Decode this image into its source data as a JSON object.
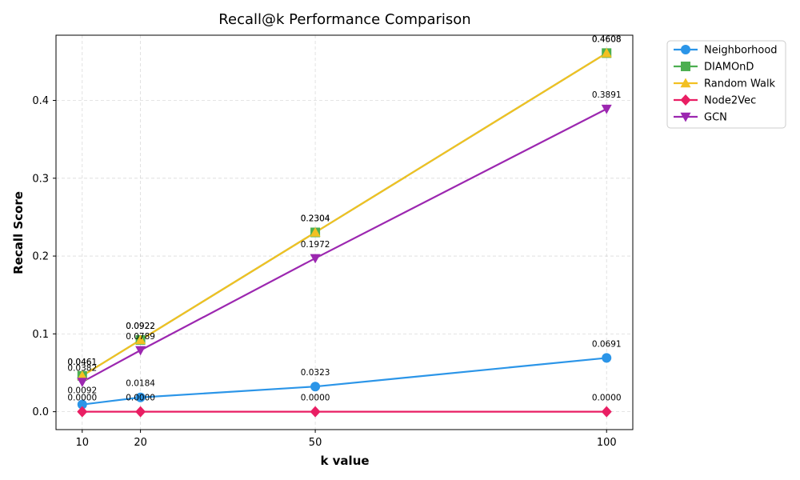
{
  "chart_data": {
    "type": "line",
    "title": "Recall@k Performance Comparison",
    "xlabel": "k value",
    "ylabel": "Recall Score",
    "x": [
      10,
      20,
      50,
      100
    ],
    "x_tick_labels": [
      "10",
      "20",
      "50",
      "100"
    ],
    "xlim": [
      5.5,
      104.5
    ],
    "ylim": [
      -0.023,
      0.4838
    ],
    "y_ticks": [
      0.0,
      0.1,
      0.2,
      0.3,
      0.4
    ],
    "y_tick_labels": [
      "0.0",
      "0.1",
      "0.2",
      "0.3",
      "0.4"
    ],
    "grid": true,
    "legend_position": "outside-top-right",
    "series": [
      {
        "name": "Neighborhood",
        "marker": "circle",
        "color": "#2B95E8",
        "values": [
          0.0092,
          0.0184,
          0.0323,
          0.0691
        ],
        "labels": [
          "0.0092",
          "0.0184",
          "0.0323",
          "0.0691"
        ]
      },
      {
        "name": "DIAMOnD",
        "marker": "square",
        "color": "#4CAF50",
        "values": [
          0.0461,
          0.0922,
          0.2304,
          0.4608
        ],
        "labels": [
          "0.0461",
          "0.0922",
          "0.2304",
          "0.4608"
        ]
      },
      {
        "name": "Random Walk",
        "marker": "triangle-up",
        "color": "#F2C022",
        "values": [
          0.0461,
          0.0922,
          0.2304,
          0.4608
        ],
        "labels": [
          "0.0461",
          "0.0922",
          "0.2304",
          "0.4608"
        ]
      },
      {
        "name": "Node2Vec",
        "marker": "diamond",
        "color": "#E91E63",
        "values": [
          0.0,
          0.0,
          0.0,
          0.0
        ],
        "labels": [
          "0.0000",
          "0.0000",
          "0.0000",
          "0.0000"
        ]
      },
      {
        "name": "GCN",
        "marker": "triangle-down",
        "color": "#9C27B0",
        "values": [
          0.0382,
          0.0789,
          0.1972,
          0.3891
        ],
        "labels": [
          "0.0382",
          "0.0789",
          "0.1972",
          "0.3891"
        ]
      }
    ]
  }
}
